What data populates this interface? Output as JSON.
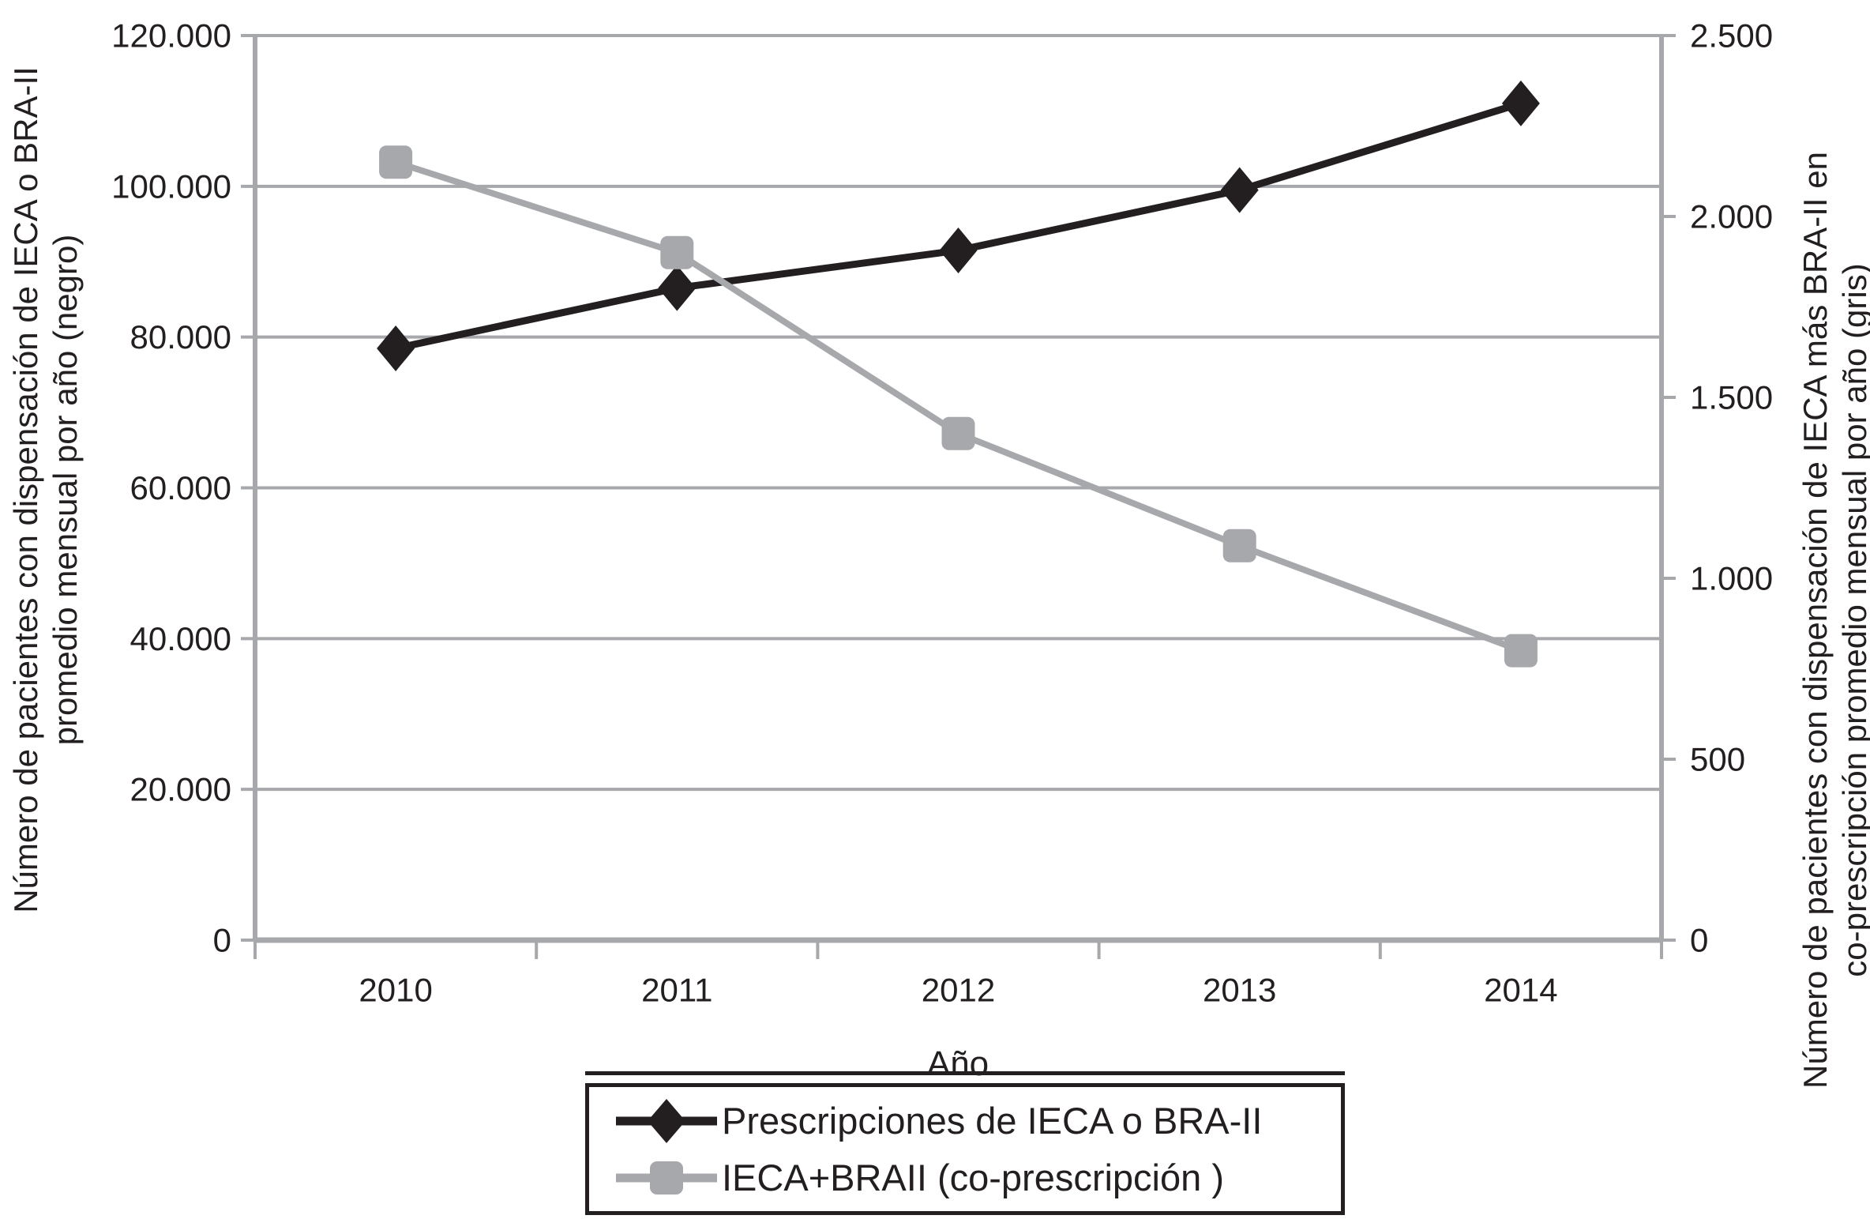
{
  "chart_data": {
    "type": "line",
    "categories": [
      "2010",
      "2011",
      "2012",
      "2013",
      "2014"
    ],
    "xlabel": "Año",
    "series": [
      {
        "name": "Prescripciones de IECA o BRA-II",
        "axis": "left",
        "color": "#231f20",
        "marker": "diamond",
        "values": [
          78500,
          86500,
          91500,
          99500,
          111000
        ]
      },
      {
        "name": "IECA+BRAII (co-prescripción )",
        "axis": "right",
        "color": "#a6a8ab",
        "marker": "square",
        "values": [
          2150,
          1900,
          1400,
          1090,
          800
        ]
      }
    ],
    "left_axis": {
      "label_line1": "Número de pacientes con dispensación de IECA o BRA-II",
      "label_line2": "promedio mensual por año (negro)",
      "min": 0,
      "max": 120000,
      "step": 20000,
      "tick_labels": [
        "0",
        "20.000",
        "40.000",
        "60.000",
        "80.000",
        "100.000",
        "120.000"
      ]
    },
    "right_axis": {
      "label_line1": "Número de pacientes con dispensación de IECA más BRA-II en",
      "label_line2": "co-prescripción promedio mensual por año (gris)",
      "min": 0,
      "max": 2500,
      "step": 500,
      "tick_labels": [
        "0",
        "500",
        "1.000",
        "1.500",
        "2.000",
        "2.500"
      ]
    },
    "legend_position": "bottom",
    "grid": true,
    "colors": {
      "black_series": "#231f20",
      "gray_series": "#a6a8ab",
      "gridline": "#a6a8ab",
      "axis": "#a6a8ab",
      "text": "#231f20",
      "background": "#ffffff"
    }
  }
}
